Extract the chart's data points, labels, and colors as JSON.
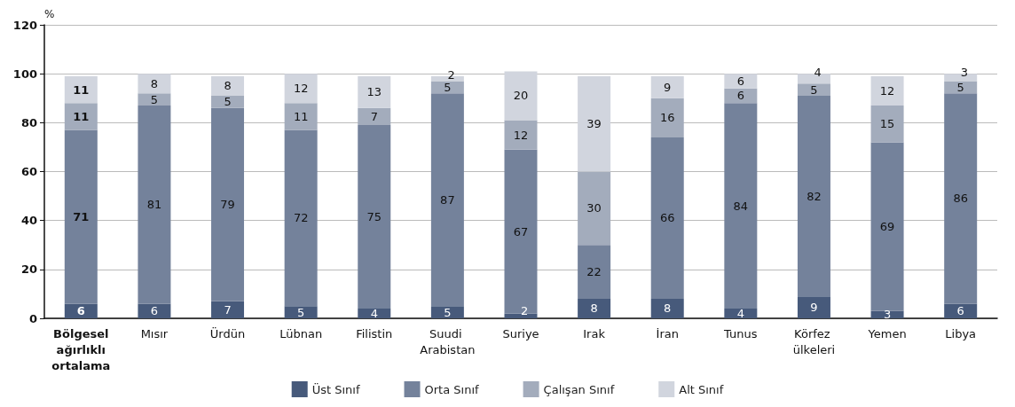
{
  "chart_data": {
    "type": "bar",
    "stacked": true,
    "ylabel": "%",
    "categories": [
      "Bölgesel ağırlıklı ortalama",
      "Mısır",
      "Ürdün",
      "Lübnan",
      "Filistin",
      "Suudi Arabistan",
      "Suriye",
      "Irak",
      "İran",
      "Tunus",
      "Körfez ülkeleri",
      "Yemen",
      "Libya"
    ],
    "series": [
      {
        "name": "Üst Sınıf",
        "color": "#475a7b",
        "values": [
          6,
          6,
          7,
          5,
          4,
          5,
          2,
          8,
          8,
          4,
          9,
          3,
          6
        ]
      },
      {
        "name": "Orta Sınıf",
        "color": "#74829b",
        "values": [
          71,
          81,
          79,
          72,
          75,
          87,
          67,
          22,
          66,
          84,
          82,
          69,
          86
        ]
      },
      {
        "name": "Çalışan Sınıf",
        "color": "#a3acbc",
        "values": [
          11,
          5,
          5,
          11,
          7,
          5,
          12,
          30,
          16,
          6,
          5,
          15,
          5
        ]
      },
      {
        "name": "Alt Sınıf",
        "color": "#d1d5de",
        "values": [
          11,
          8,
          8,
          12,
          13,
          2,
          20,
          39,
          9,
          6,
          4,
          12,
          3
        ]
      }
    ],
    "ylim": [
      0,
      120
    ],
    "yticks": [
      0,
      20,
      40,
      60,
      80,
      100,
      120
    ],
    "grid": "y",
    "legend": "bottom",
    "data_labels": true
  }
}
